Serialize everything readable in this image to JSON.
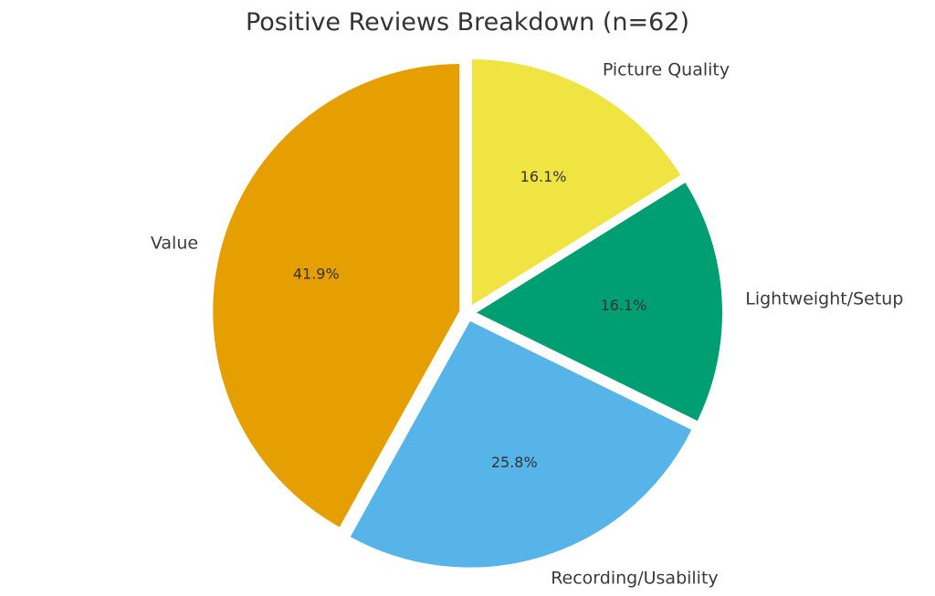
{
  "chart_data": {
    "type": "pie",
    "title": "Positive Reviews Breakdown (n=62)",
    "categories": [
      "Picture Quality",
      "Lightweight/Setup",
      "Recording/Usability",
      "Value"
    ],
    "values": [
      10,
      10,
      16,
      26
    ],
    "percent_labels": [
      "16.1%",
      "16.1%",
      "25.8%",
      "41.9%"
    ],
    "colors": [
      "#F0E442",
      "#009E73",
      "#56B4E9",
      "#E69F00"
    ],
    "start_angle": "top (12 o'clock)",
    "direction": "clockwise",
    "exploded": true
  }
}
